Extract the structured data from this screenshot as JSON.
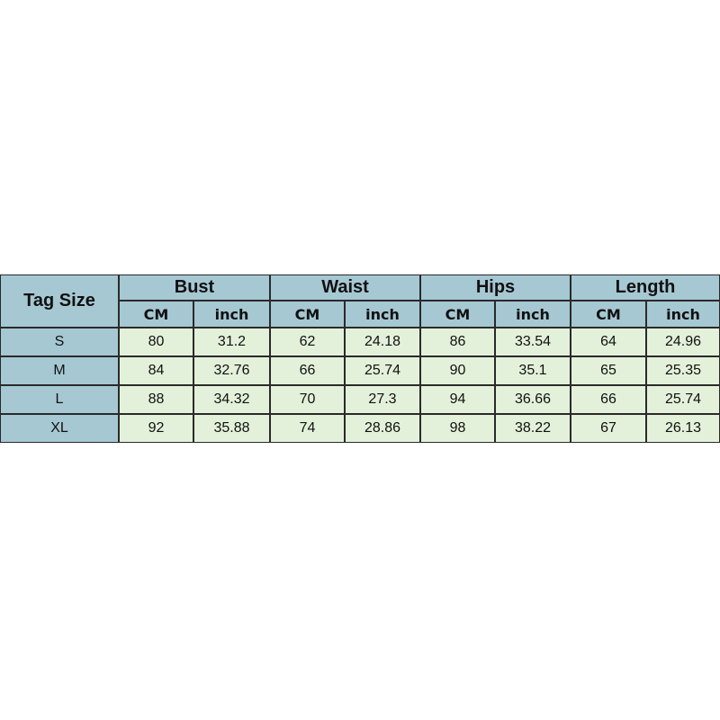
{
  "table": {
    "corner": "Tag Size",
    "groups": [
      "Bust",
      "Waist",
      "Hips",
      "Length"
    ],
    "units": [
      "CM",
      "inch",
      "CM",
      "inch",
      "CM",
      "inch",
      "CM",
      "inch"
    ],
    "rows": [
      [
        "S",
        "80",
        "31.2",
        "62",
        "24.18",
        "86",
        "33.54",
        "64",
        "24.96"
      ],
      [
        "M",
        "84",
        "32.76",
        "66",
        "25.74",
        "90",
        "35.1",
        "65",
        "25.35"
      ],
      [
        "L",
        "88",
        "34.32",
        "70",
        "27.3",
        "94",
        "36.66",
        "66",
        "25.74"
      ],
      [
        "XL",
        "92",
        "35.88",
        "74",
        "28.86",
        "98",
        "38.22",
        "67",
        "26.13"
      ]
    ]
  }
}
